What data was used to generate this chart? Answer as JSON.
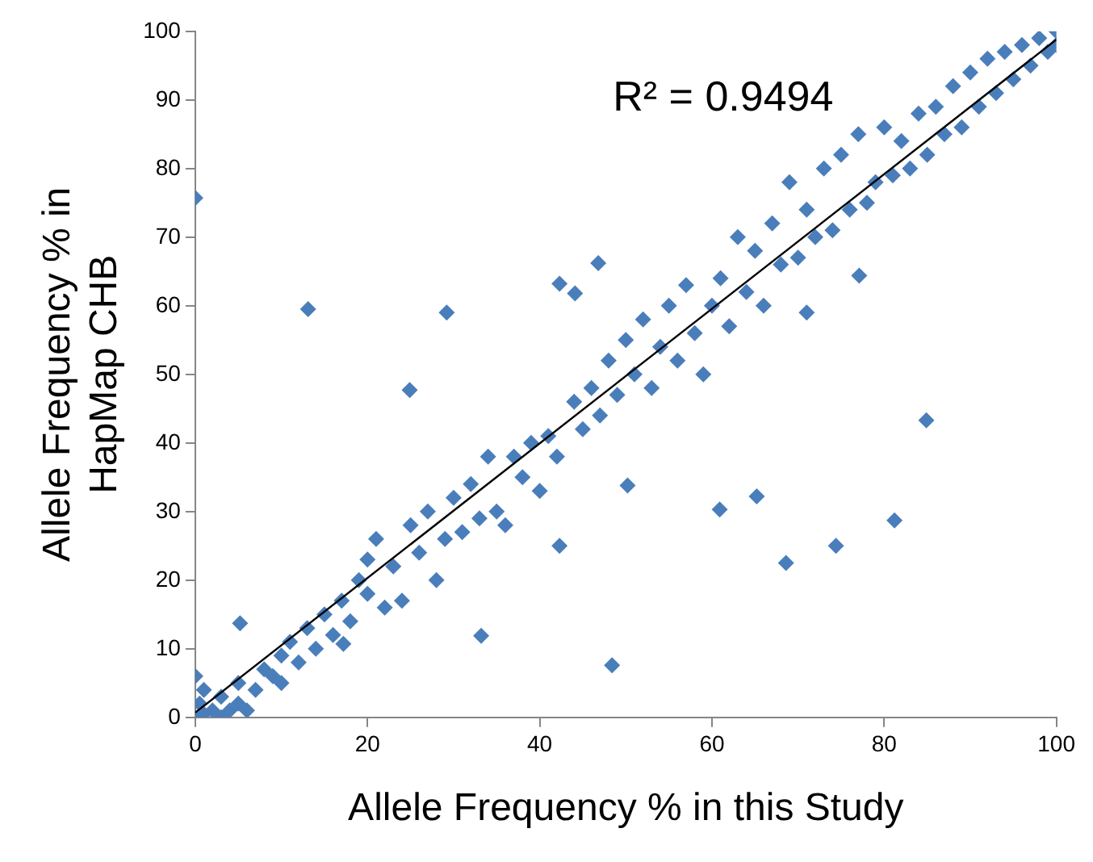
{
  "chart_data": {
    "type": "scatter",
    "xlabel": "Allele Frequency % in this Study",
    "ylabel": "Allele Frequency % in HapMap CHB",
    "annotations": [
      "R² = 0.9494"
    ],
    "xlim": [
      0,
      100
    ],
    "ylim": [
      0,
      100
    ],
    "xticks": [
      0,
      20,
      40,
      60,
      80,
      100
    ],
    "yticks": [
      0,
      10,
      20,
      30,
      40,
      50,
      60,
      70,
      80,
      90,
      100
    ],
    "grid": false,
    "legend": false,
    "marker": "diamond",
    "series": [
      {
        "color": "#4a7ebb",
        "x": [
          0,
          0.5,
          1,
          2,
          3,
          4,
          5,
          0,
          1,
          3,
          5,
          6,
          7,
          8,
          9,
          10,
          10,
          11,
          12,
          13,
          14,
          15,
          16,
          17,
          18,
          19,
          20,
          20,
          21,
          22,
          23,
          24,
          25,
          26,
          27,
          28,
          29,
          30,
          31,
          32,
          33,
          34,
          35,
          36,
          37,
          38,
          39,
          40,
          41,
          42,
          44,
          45,
          46,
          47,
          48,
          49,
          50,
          51,
          52,
          53,
          54,
          55,
          56,
          57,
          58,
          59,
          60,
          61,
          62,
          63,
          64,
          65,
          66,
          67,
          68,
          69,
          70,
          71,
          72,
          73,
          74,
          75,
          76,
          77,
          78,
          79,
          80,
          81,
          82,
          83,
          84,
          85,
          86,
          87,
          88,
          89,
          90,
          91,
          92,
          93,
          94,
          95,
          96,
          97,
          98,
          99,
          100,
          100,
          0,
          13.1,
          29.2,
          24.9,
          48.4,
          33.2,
          5.2,
          17.2,
          42.3,
          44.1,
          46.8,
          50.2,
          42.3,
          60.9,
          65.2,
          68.6,
          74.4,
          81.2,
          84.9,
          77.1,
          71
        ],
        "values": [
          0,
          2,
          0.5,
          1,
          3,
          1,
          2,
          6,
          4,
          0,
          5,
          1,
          4,
          7,
          6,
          9,
          5,
          11,
          8,
          13,
          10,
          15,
          12,
          17,
          14,
          20,
          18,
          23,
          26,
          16,
          22,
          17,
          28,
          24,
          30,
          20,
          26,
          32,
          27,
          34,
          29,
          38,
          30,
          28,
          38,
          35,
          40,
          33,
          41,
          38,
          46,
          42,
          48,
          44,
          52,
          47,
          55,
          50,
          58,
          48,
          54,
          60,
          52,
          63,
          56,
          50,
          60,
          64,
          57,
          70,
          62,
          68,
          60,
          72,
          66,
          78,
          67,
          74,
          70,
          80,
          71,
          82,
          74,
          85,
          75,
          78,
          86,
          79,
          84,
          80,
          88,
          82,
          89,
          85,
          92,
          86,
          94,
          89,
          96,
          91,
          97,
          93,
          98,
          95,
          99,
          97,
          100,
          98,
          75.7,
          59.5,
          59,
          47.7,
          7.6,
          11.9,
          13.7,
          10.7,
          63.2,
          61.8,
          66.2,
          33.8,
          25,
          30.3,
          32.2,
          22.5,
          25,
          28.7,
          43.3,
          64.4,
          59
        ]
      },
      {
        "type": "line",
        "color": "#000000",
        "x": [
          0,
          100
        ],
        "values": [
          0.7,
          98.8
        ],
        "marker": "none",
        "line_style": "solid"
      }
    ]
  }
}
